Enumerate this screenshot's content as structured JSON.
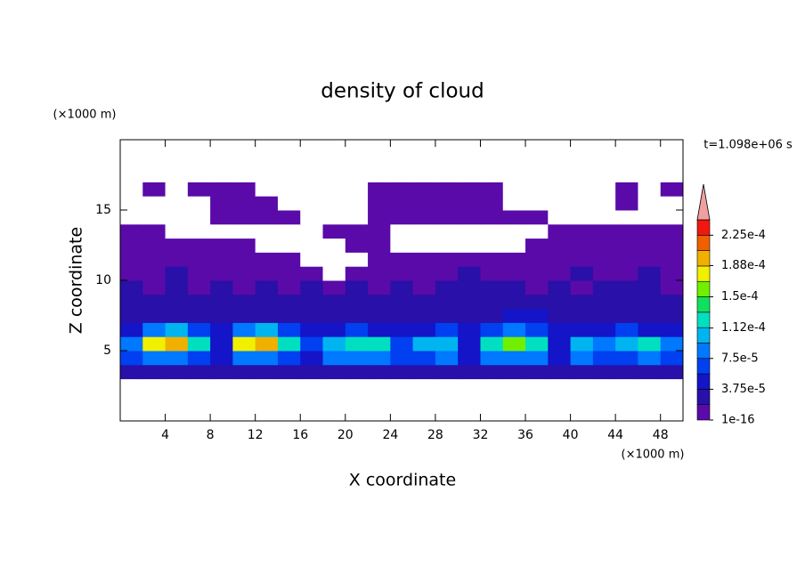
{
  "chart_data": {
    "type": "contour",
    "title": "density of cloud",
    "x_label": "X coordinate",
    "y_label": "Z coordinate",
    "x_unit": "(×1000 m)",
    "y_unit": "(×1000 m)",
    "time_label": "t=1.098e+06 s",
    "xlim": [
      0,
      50
    ],
    "ylim": [
      0,
      20
    ],
    "xticks": [
      4,
      8,
      12,
      16,
      20,
      24,
      28,
      32,
      36,
      40,
      44,
      48
    ],
    "yticks": [
      5,
      10,
      15
    ],
    "x": [
      1,
      3,
      5,
      7,
      9,
      11,
      13,
      15,
      17,
      19,
      21,
      23,
      25,
      27,
      29,
      31,
      33,
      35,
      37,
      39,
      41,
      43,
      45,
      47,
      49
    ],
    "y": [
      3.5,
      4.5,
      5.5,
      6.5,
      7.5,
      8.5,
      9.5,
      10.5,
      11.5,
      12.5,
      13.5,
      14.5,
      15.5,
      16.5,
      17.5
    ],
    "z": [
      [
        2e-05,
        2e-05,
        2e-05,
        2e-05,
        2e-05,
        2e-05,
        2e-05,
        2e-05,
        2e-05,
        2e-05,
        2e-05,
        2e-05,
        2e-05,
        2e-05,
        2e-05,
        2e-05,
        2e-05,
        2e-05,
        2e-05,
        2e-05,
        2e-05,
        2e-05,
        2e-05,
        2e-05,
        2e-05
      ],
      [
        6e-05,
        8e-05,
        8e-05,
        6e-05,
        4e-05,
        9e-05,
        9e-05,
        7e-05,
        5e-05,
        8e-05,
        9e-05,
        8e-05,
        6e-05,
        7e-05,
        8e-05,
        5e-05,
        8e-05,
        9e-05,
        8e-05,
        4e-05,
        8e-05,
        7e-05,
        7e-05,
        8e-05,
        6e-05
      ],
      [
        9e-05,
        0.00017,
        0.00019,
        0.00012,
        4e-05,
        0.00017,
        0.00019,
        0.00012,
        6e-05,
        0.00011,
        0.00013,
        0.00012,
        7e-05,
        0.0001,
        0.00011,
        5e-05,
        0.00013,
        0.00015,
        0.00012,
        4e-05,
        0.00011,
        9e-05,
        0.00011,
        0.00012,
        9e-05
      ],
      [
        5e-05,
        9e-05,
        0.0001,
        7e-05,
        4e-05,
        9e-05,
        0.0001,
        6e-05,
        4e-05,
        5e-05,
        6e-05,
        5e-05,
        4e-05,
        5e-05,
        6e-05,
        4e-05,
        7e-05,
        8e-05,
        7e-05,
        4e-05,
        5e-05,
        5e-05,
        6e-05,
        5e-05,
        4e-05
      ],
      [
        3e-05,
        3e-05,
        3e-05,
        3e-05,
        3e-05,
        3e-05,
        3e-05,
        3e-05,
        3e-05,
        3e-05,
        3e-05,
        3e-05,
        3e-05,
        3e-05,
        3e-05,
        3e-05,
        3e-05,
        5e-05,
        4e-05,
        3e-05,
        3e-05,
        3e-05,
        3e-05,
        3e-05,
        3e-05
      ],
      [
        2e-05,
        2e-05,
        2e-05,
        2e-05,
        2e-05,
        2e-05,
        2e-05,
        2e-05,
        2e-05,
        2e-05,
        2e-05,
        2e-05,
        2e-05,
        2e-05,
        2e-05,
        3e-05,
        3e-05,
        3e-05,
        3e-05,
        2e-05,
        2e-05,
        2e-05,
        2e-05,
        2e-05,
        2e-05
      ],
      [
        2e-05,
        1e-05,
        2e-05,
        1e-05,
        2e-05,
        1e-05,
        2e-05,
        1e-05,
        2e-05,
        1e-05,
        2e-05,
        1e-05,
        2e-05,
        1e-05,
        2e-05,
        2e-05,
        2e-05,
        2e-05,
        1e-05,
        2e-05,
        1e-05,
        2e-05,
        2e-05,
        2e-05,
        1e-05
      ],
      [
        1e-05,
        1e-05,
        2e-05,
        1e-05,
        1e-05,
        1e-05,
        1e-05,
        1e-05,
        1e-05,
        0,
        1e-05,
        1e-05,
        1e-05,
        1e-05,
        1e-05,
        2e-05,
        1e-05,
        1e-05,
        1e-05,
        1e-05,
        2e-05,
        1e-05,
        1e-05,
        2e-05,
        1e-05
      ],
      [
        1e-05,
        1e-05,
        1e-05,
        1e-05,
        1e-05,
        1e-05,
        1e-05,
        1e-05,
        0,
        0,
        0,
        1e-05,
        1e-05,
        1e-05,
        1e-05,
        1e-05,
        1e-05,
        1e-05,
        1e-05,
        1e-05,
        1e-05,
        1e-05,
        1e-05,
        1e-05,
        1e-05
      ],
      [
        1e-05,
        1e-05,
        1e-05,
        1e-05,
        1e-05,
        1e-05,
        0,
        0,
        0,
        0,
        1e-05,
        1e-05,
        0,
        0,
        0,
        0,
        0,
        0,
        1e-05,
        1e-05,
        1e-05,
        1e-05,
        1e-05,
        1e-05,
        1e-05
      ],
      [
        1e-05,
        1e-05,
        0,
        0,
        0,
        0,
        0,
        0,
        0,
        1e-05,
        1e-05,
        1e-05,
        0,
        0,
        0,
        0,
        0,
        0,
        0,
        1e-05,
        1e-05,
        1e-05,
        1e-05,
        1e-05,
        1e-05
      ],
      [
        0,
        0,
        0,
        0,
        1e-05,
        1e-05,
        1e-05,
        1e-05,
        0,
        0,
        0,
        1e-05,
        1e-05,
        1e-05,
        1e-05,
        1e-05,
        1e-05,
        1e-05,
        1e-05,
        0,
        0,
        0,
        0,
        0,
        0
      ],
      [
        0,
        0,
        0,
        0,
        1e-05,
        1e-05,
        1e-05,
        0,
        0,
        0,
        0,
        1e-05,
        1e-05,
        1e-05,
        1e-05,
        1e-05,
        1e-05,
        0,
        0,
        0,
        0,
        0,
        1e-05,
        0,
        0
      ],
      [
        0,
        1e-05,
        0,
        1e-05,
        1e-05,
        1e-05,
        0,
        0,
        0,
        0,
        0,
        1e-05,
        1e-05,
        1e-05,
        1e-05,
        1e-05,
        1e-05,
        0,
        0,
        0,
        0,
        0,
        1e-05,
        0,
        1e-05
      ],
      [
        0,
        0,
        0,
        0,
        0,
        0,
        0,
        0,
        0,
        0,
        0,
        0,
        0,
        0,
        0,
        0,
        0,
        0,
        0,
        0,
        0,
        0,
        0,
        0,
        0
      ]
    ],
    "levels": [
      1e-16,
      1.875e-05,
      3.75e-05,
      5.625e-05,
      7.5e-05,
      9.375e-05,
      0.0001125,
      0.00013125,
      0.00015,
      0.00016875,
      0.0001875,
      0.00020625,
      0.000225,
      0.00024375
    ],
    "colors": [
      "#5a0aa8",
      "#2810a8",
      "#1414c8",
      "#0040f0",
      "#0078ff",
      "#00b4f0",
      "#00e0c0",
      "#10e060",
      "#70f000",
      "#f0f000",
      "#f0b000",
      "#f06000",
      "#f01810"
    ],
    "extend_color": "#f0a0a0",
    "colorbar_ticks": [
      {
        "value": 1e-16,
        "label": "1e-16"
      },
      {
        "value": 3.75e-05,
        "label": "3.75e-5"
      },
      {
        "value": 7.5e-05,
        "label": "7.5e-5"
      },
      {
        "value": 0.000112,
        "label": "1.12e-4"
      },
      {
        "value": 0.00015,
        "label": "1.5e-4"
      },
      {
        "value": 0.000188,
        "label": "1.88e-4"
      },
      {
        "value": 0.000225,
        "label": "2.25e-4"
      }
    ]
  }
}
